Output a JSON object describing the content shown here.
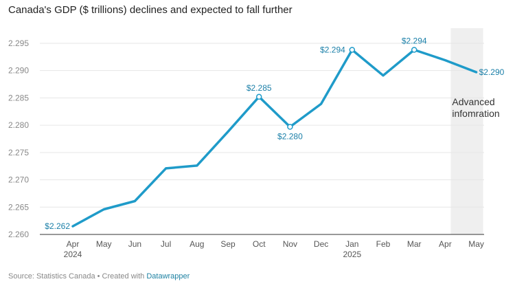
{
  "title": "Canada's GDP ($ trillions) declines and expected to fall further",
  "footer": {
    "source": "Source: Statistics Canada • Created with ",
    "link": "Datawrapper"
  },
  "colors": {
    "line": "#1f9bc9",
    "label": "#1a7fa8",
    "shade": "#efefef"
  },
  "chart_data": {
    "type": "line",
    "categories": [
      "Apr",
      "May",
      "Jun",
      "Jul",
      "Aug",
      "Sep",
      "Oct",
      "Nov",
      "Dec",
      "Jan",
      "Feb",
      "Mar",
      "Apr",
      "May"
    ],
    "year_labels": [
      "2024",
      "",
      "",
      "",
      "",
      "",
      "",
      "",
      "",
      "2025",
      "",
      "",
      "",
      ""
    ],
    "series": [
      {
        "values": [
          2.2615,
          2.2646,
          2.2661,
          2.2721,
          2.2726,
          2.2788,
          2.2852,
          2.2797,
          2.2839,
          2.2938,
          2.2891,
          2.2938,
          2.2919,
          2.2897
        ]
      }
    ],
    "ylim": [
      2.26,
      2.296
    ],
    "yticks": [
      2.26,
      2.265,
      2.27,
      2.275,
      2.28,
      2.285,
      2.29,
      2.295
    ],
    "ytick_labels": [
      "2.260",
      "2.265",
      "2.270",
      "2.275",
      "2.280",
      "2.285",
      "2.290",
      "2.295"
    ],
    "data_labels": [
      {
        "index": 0,
        "text": "$2.262",
        "marker": false
      },
      {
        "index": 6,
        "text": "$2.285",
        "marker": true
      },
      {
        "index": 7,
        "text": "$2.280",
        "marker": true
      },
      {
        "index": 9,
        "text": "$2.294",
        "marker": true
      },
      {
        "index": 11,
        "text": "$2.294",
        "marker": true
      },
      {
        "index": 13,
        "text": "$2.290",
        "marker": false
      }
    ],
    "shaded_region": {
      "from_index": 12,
      "to_index": 13,
      "label_lines": [
        "Advanced",
        "infomration"
      ]
    },
    "grid": true
  }
}
